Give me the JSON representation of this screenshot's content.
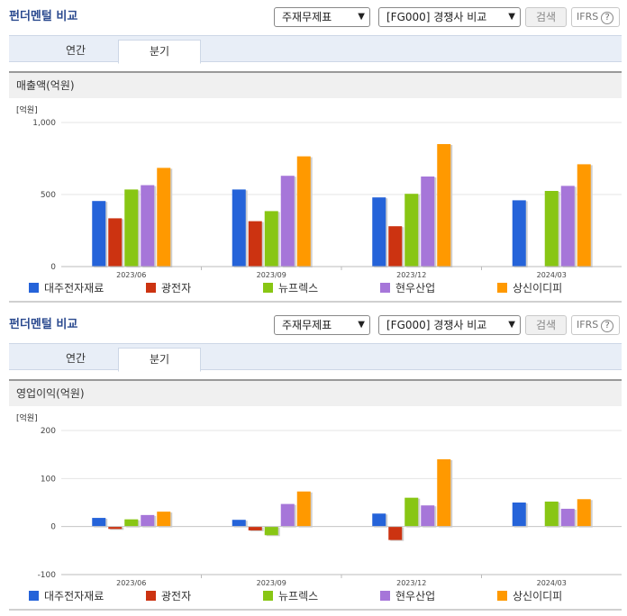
{
  "panels": [
    {
      "title": "펀더멘털 비교",
      "select_type": "주재무제표",
      "select_group": "[FG000] 경쟁사 비교",
      "search_label": "검색",
      "ifrs_label": "IFRS",
      "ifrs_help": "?",
      "tabs": [
        {
          "label": "연간"
        },
        {
          "label": "분기"
        }
      ],
      "active_tab": 1,
      "section_title": "매출액(억원)"
    },
    {
      "title": "펀더멘털 비교",
      "select_type": "주재무제표",
      "select_group": "[FG000] 경쟁사 비교",
      "search_label": "검색",
      "ifrs_label": "IFRS",
      "ifrs_help": "?",
      "tabs": [
        {
          "label": "연간"
        },
        {
          "label": "분기"
        }
      ],
      "active_tab": 1,
      "section_title": "영업이익(억원)"
    }
  ],
  "colors": {
    "series": [
      "#2563d9",
      "#cc3311",
      "#88c614",
      "#a676d9",
      "#ff9900"
    ],
    "title": "#2b4a8f"
  },
  "chart_data": [
    {
      "type": "bar",
      "unit_label": "[억원]",
      "categories": [
        "2023/06",
        "2023/09",
        "2023/12",
        "2024/03"
      ],
      "ylim": [
        0,
        1000
      ],
      "yticks": [
        0,
        500,
        1000
      ],
      "ytick_labels": [
        "0",
        "500",
        "1,000"
      ],
      "series": [
        {
          "name": "대주전자재료",
          "values": [
            455,
            535,
            480,
            460
          ]
        },
        {
          "name": "광전자",
          "values": [
            335,
            315,
            280,
            null
          ]
        },
        {
          "name": "뉴프렉스",
          "values": [
            535,
            385,
            505,
            525
          ]
        },
        {
          "name": "현우산업",
          "values": [
            565,
            630,
            625,
            560
          ]
        },
        {
          "name": "상신이디피",
          "values": [
            685,
            765,
            850,
            710
          ]
        }
      ]
    },
    {
      "type": "bar",
      "unit_label": "[억원]",
      "categories": [
        "2023/06",
        "2023/09",
        "2023/12",
        "2024/03"
      ],
      "ylim": [
        -100,
        200
      ],
      "yticks": [
        -100,
        0,
        100,
        200
      ],
      "ytick_labels": [
        "-100",
        "0",
        "100",
        "200"
      ],
      "series": [
        {
          "name": "대주전자재료",
          "values": [
            18,
            14,
            27,
            50
          ]
        },
        {
          "name": "광전자",
          "values": [
            -5,
            -8,
            -28,
            null
          ]
        },
        {
          "name": "뉴프렉스",
          "values": [
            15,
            -18,
            60,
            52
          ]
        },
        {
          "name": "현우산업",
          "values": [
            24,
            47,
            44,
            37
          ]
        },
        {
          "name": "상신이디피",
          "values": [
            31,
            73,
            140,
            57
          ]
        }
      ]
    }
  ]
}
